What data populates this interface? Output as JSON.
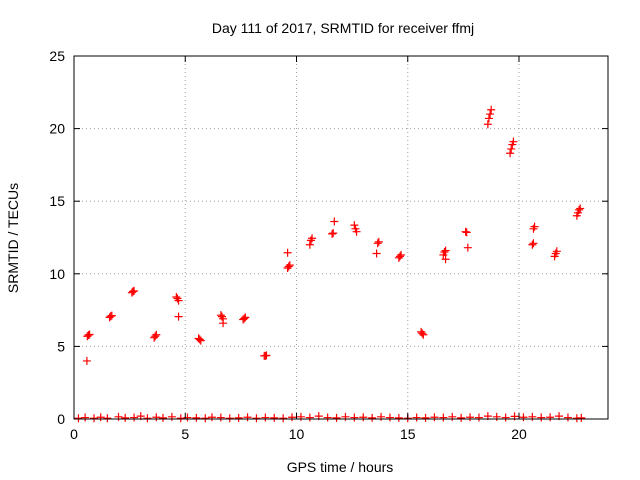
{
  "chart_data": {
    "type": "scatter",
    "title": "Day 111 of 2017, SRMTID for receiver ffmj",
    "xlabel": "GPS time / hours",
    "ylabel": "SRMTID / TECUs",
    "xlim": [
      0,
      24
    ],
    "ylim": [
      0,
      25
    ],
    "x_ticks": [
      0,
      5,
      10,
      15,
      20
    ],
    "y_ticks": [
      0,
      5,
      10,
      15,
      20,
      25
    ],
    "grid": true,
    "marker": "+",
    "marker_color": "#ff0000",
    "series": [
      {
        "name": "SRMTID",
        "points": [
          [
            0.6,
            5.7
          ],
          [
            0.65,
            5.78
          ],
          [
            0.7,
            5.82
          ],
          [
            0.58,
            4.0
          ],
          [
            1.6,
            7.0
          ],
          [
            1.65,
            7.08
          ],
          [
            1.7,
            7.12
          ],
          [
            2.6,
            8.7
          ],
          [
            2.65,
            8.78
          ],
          [
            2.7,
            8.82
          ],
          [
            3.6,
            5.6
          ],
          [
            3.65,
            5.7
          ],
          [
            3.7,
            5.8
          ],
          [
            4.6,
            8.4
          ],
          [
            4.65,
            8.3
          ],
          [
            4.7,
            8.15
          ],
          [
            4.7,
            7.05
          ],
          [
            5.6,
            5.55
          ],
          [
            5.65,
            5.48
          ],
          [
            5.7,
            5.4
          ],
          [
            6.6,
            7.15
          ],
          [
            6.65,
            7.05
          ],
          [
            6.7,
            6.9
          ],
          [
            6.7,
            6.6
          ],
          [
            7.6,
            6.85
          ],
          [
            7.65,
            6.92
          ],
          [
            7.7,
            7.0
          ],
          [
            8.55,
            4.35
          ],
          [
            8.6,
            4.35
          ],
          [
            8.65,
            4.38
          ],
          [
            9.6,
            10.4
          ],
          [
            9.65,
            10.5
          ],
          [
            9.7,
            10.6
          ],
          [
            9.6,
            11.45
          ],
          [
            10.6,
            12.0
          ],
          [
            10.65,
            12.3
          ],
          [
            10.7,
            12.45
          ],
          [
            11.6,
            12.75
          ],
          [
            11.65,
            12.8
          ],
          [
            11.7,
            13.6
          ],
          [
            12.6,
            13.35
          ],
          [
            12.65,
            13.1
          ],
          [
            12.7,
            12.9
          ],
          [
            13.6,
            11.4
          ],
          [
            13.65,
            12.1
          ],
          [
            13.7,
            12.2
          ],
          [
            14.6,
            11.1
          ],
          [
            14.65,
            11.2
          ],
          [
            14.7,
            11.3
          ],
          [
            15.6,
            6.0
          ],
          [
            15.65,
            5.9
          ],
          [
            15.7,
            5.8
          ],
          [
            16.6,
            11.3
          ],
          [
            16.65,
            11.5
          ],
          [
            16.7,
            11.6
          ],
          [
            16.7,
            11.0
          ],
          [
            17.6,
            12.9
          ],
          [
            17.65,
            12.85
          ],
          [
            17.7,
            11.8
          ],
          [
            18.6,
            20.3
          ],
          [
            18.65,
            20.7
          ],
          [
            18.7,
            21.0
          ],
          [
            18.75,
            21.3
          ],
          [
            19.6,
            18.3
          ],
          [
            19.65,
            18.6
          ],
          [
            19.7,
            18.9
          ],
          [
            19.75,
            19.1
          ],
          [
            20.6,
            12.0
          ],
          [
            20.65,
            12.1
          ],
          [
            20.65,
            13.1
          ],
          [
            20.7,
            13.25
          ],
          [
            21.6,
            11.2
          ],
          [
            21.65,
            11.4
          ],
          [
            21.7,
            11.55
          ],
          [
            22.6,
            14.0
          ],
          [
            22.65,
            14.2
          ],
          [
            22.7,
            14.4
          ],
          [
            22.75,
            14.5
          ],
          [
            0.2,
            0.05
          ],
          [
            0.5,
            0.1
          ],
          [
            0.9,
            0.05
          ],
          [
            1.2,
            0.12
          ],
          [
            1.5,
            0.05
          ],
          [
            2.0,
            0.15
          ],
          [
            2.3,
            0.08
          ],
          [
            2.7,
            0.1
          ],
          [
            3.0,
            0.2
          ],
          [
            3.3,
            0.05
          ],
          [
            3.7,
            0.12
          ],
          [
            4.0,
            0.08
          ],
          [
            4.4,
            0.15
          ],
          [
            4.8,
            0.05
          ],
          [
            5.1,
            0.1
          ],
          [
            5.5,
            0.08
          ],
          [
            5.9,
            0.05
          ],
          [
            6.2,
            0.12
          ],
          [
            6.6,
            0.1
          ],
          [
            7.0,
            0.05
          ],
          [
            7.4,
            0.08
          ],
          [
            7.8,
            0.12
          ],
          [
            8.2,
            0.05
          ],
          [
            8.6,
            0.1
          ],
          [
            9.0,
            0.08
          ],
          [
            9.4,
            0.05
          ],
          [
            9.8,
            0.12
          ],
          [
            10.2,
            0.15
          ],
          [
            10.6,
            0.1
          ],
          [
            11.0,
            0.2
          ],
          [
            11.4,
            0.1
          ],
          [
            11.8,
            0.08
          ],
          [
            12.2,
            0.15
          ],
          [
            12.6,
            0.1
          ],
          [
            13.0,
            0.12
          ],
          [
            13.4,
            0.08
          ],
          [
            13.8,
            0.15
          ],
          [
            14.2,
            0.1
          ],
          [
            14.6,
            0.08
          ],
          [
            15.0,
            0.05
          ],
          [
            15.4,
            0.1
          ],
          [
            15.8,
            0.08
          ],
          [
            16.2,
            0.12
          ],
          [
            16.6,
            0.1
          ],
          [
            17.0,
            0.15
          ],
          [
            17.4,
            0.08
          ],
          [
            17.8,
            0.12
          ],
          [
            18.2,
            0.1
          ],
          [
            18.6,
            0.2
          ],
          [
            19.0,
            0.15
          ],
          [
            19.4,
            0.1
          ],
          [
            19.8,
            0.18
          ],
          [
            20.2,
            0.12
          ],
          [
            20.6,
            0.15
          ],
          [
            21.0,
            0.1
          ],
          [
            21.4,
            0.12
          ],
          [
            21.8,
            0.2
          ],
          [
            22.2,
            0.1
          ],
          [
            22.6,
            0.05
          ],
          [
            22.8,
            0.08
          ]
        ]
      }
    ]
  }
}
